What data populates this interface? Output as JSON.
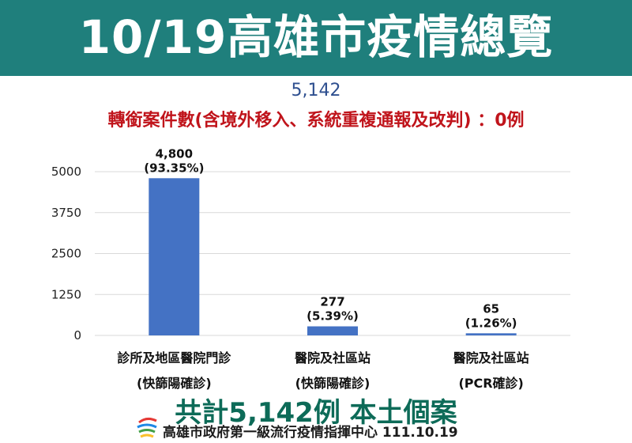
{
  "banner": {
    "title": "10/19高雄市疫情總覽"
  },
  "header": {
    "total": "5,142",
    "transfer_note": "轉銜案件數(含境外移入、系統重複通報及改判) ：0例"
  },
  "chart_data": {
    "type": "bar",
    "categories": [
      [
        "診所及地區醫院門診",
        "(快篩陽確診)"
      ],
      [
        "醫院及社區站",
        "(快篩陽確診)"
      ],
      [
        "醫院及社區站",
        "(PCR確診)"
      ]
    ],
    "values": [
      4800,
      277,
      65
    ],
    "value_labels": [
      "4,800",
      "277",
      "65"
    ],
    "percent_labels": [
      "(93.35%)",
      "(5.39%)",
      "(1.26%)"
    ],
    "yticks": [
      0,
      1250,
      2500,
      3750,
      5000
    ],
    "ylim": [
      0,
      5000
    ],
    "grid": true,
    "colors": {
      "bar": "#4472c4",
      "grid": "#d9d9d9"
    }
  },
  "summary": "共計5,142例 本土個案",
  "footer": {
    "text": "高雄市政府第一級流行疫情指揮中心 111.10.19"
  },
  "colors": {
    "banner": "#1f7f7c",
    "total": "#2e4f8f",
    "note": "#c0141b",
    "summary": "#0d6b58"
  }
}
